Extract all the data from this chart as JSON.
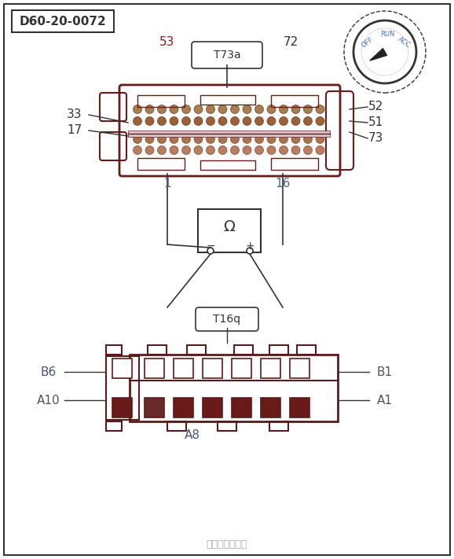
{
  "title_box": "D60-20-0072",
  "connector_label": "T73a",
  "connector2_label": "T16q",
  "pin_labels_left": [
    "53",
    "33",
    "17",
    "1"
  ],
  "pin_labels_right": [
    "72",
    "52",
    "51",
    "73",
    "16"
  ],
  "bottom_labels_left": [
    "B6",
    "A10",
    "A8"
  ],
  "bottom_labels_right": [
    "B1",
    "A1"
  ],
  "dial_labels": [
    "OFF",
    "RUN",
    "ACC"
  ],
  "bg_color": "#ffffff",
  "border_color": "#333333",
  "dark_red": "#6b1a1a",
  "dark_brown": "#5a1a1a",
  "gray": "#888888",
  "blue_gray": "#4a6080",
  "light_gray": "#cccccc",
  "watermark": "汽车维修技术网"
}
